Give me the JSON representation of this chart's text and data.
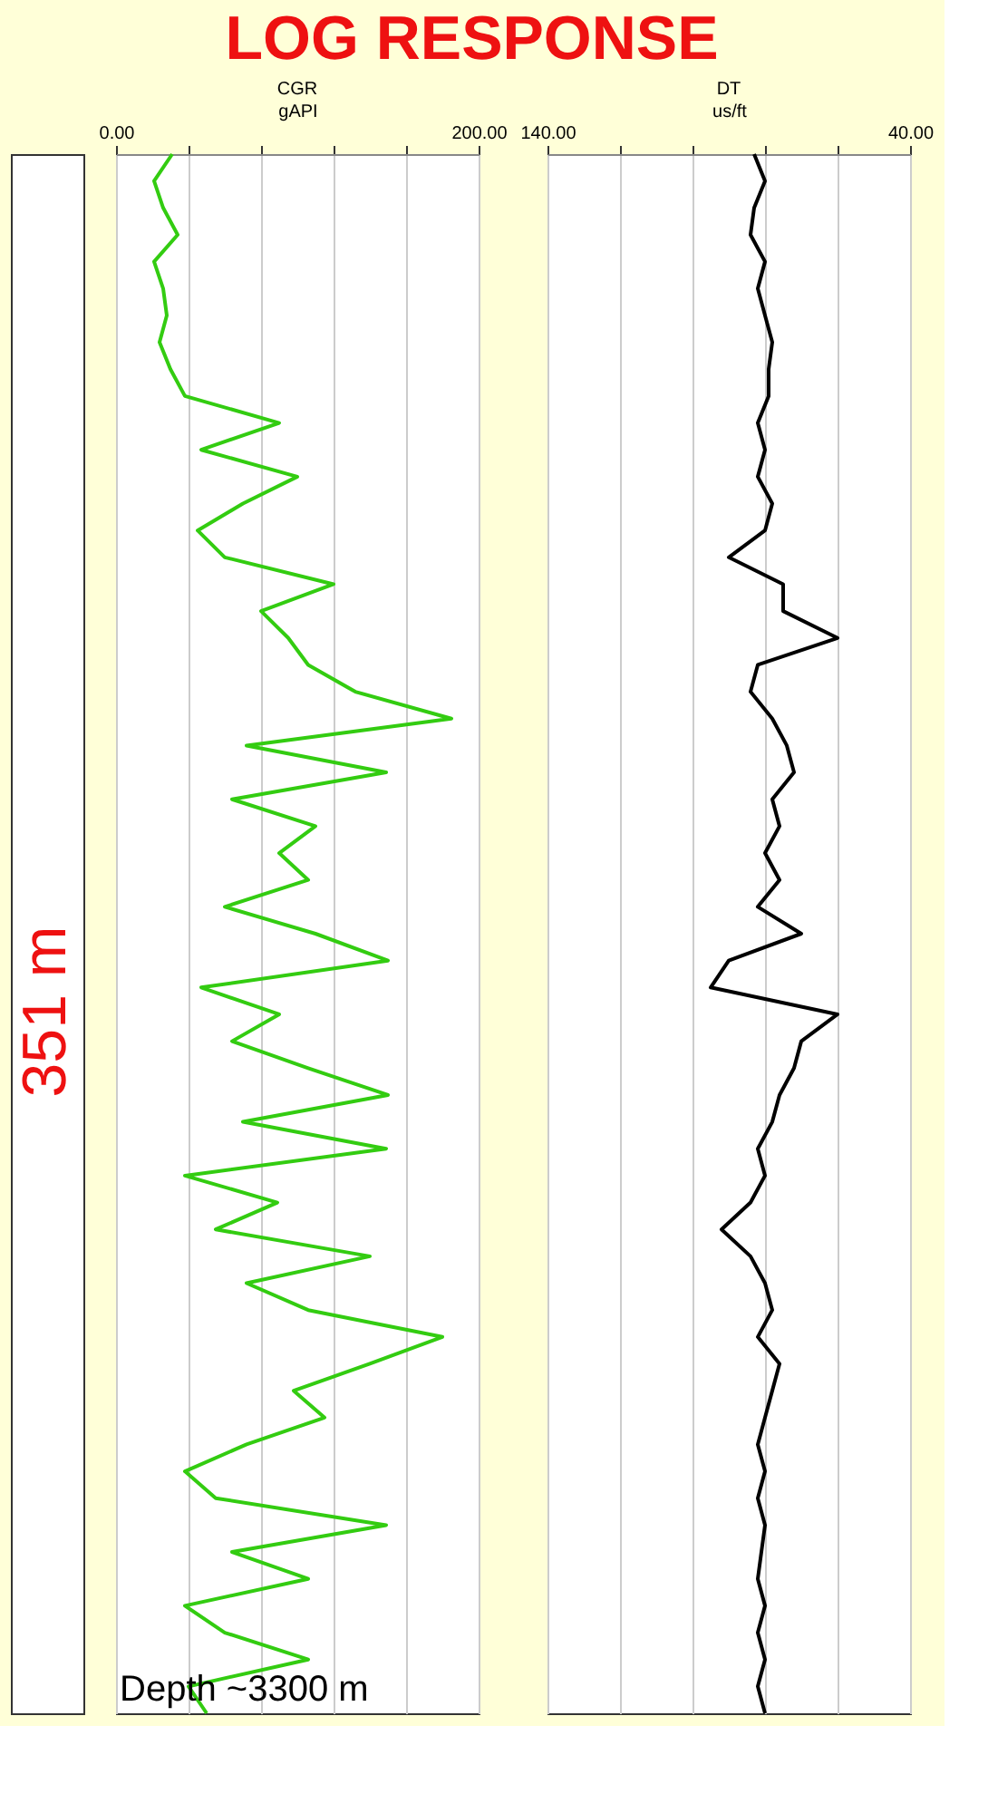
{
  "chart_data": [
    {
      "type": "line",
      "orientation": "horizontal",
      "title": "LOG RESPONSE",
      "subtitle": "CGR",
      "xlabel": "gAPI",
      "color": "#33cc11",
      "categories": [
        null,
        null,
        null,
        null,
        null,
        null,
        null,
        null,
        null,
        null,
        null,
        null,
        null,
        null,
        null,
        null,
        null,
        null,
        null,
        null,
        null,
        null,
        null,
        null,
        null,
        null,
        null,
        null,
        null,
        null,
        null,
        null,
        null,
        null,
        null,
        null,
        null,
        null,
        null,
        null,
        null,
        null,
        null,
        null,
        null,
        null,
        null,
        null,
        null,
        null,
        null,
        null,
        null,
        null,
        null,
        null,
        null,
        null,
        null
      ],
      "values": [
        31,
        21,
        26,
        34,
        21,
        26,
        28,
        24,
        30,
        38,
        90,
        47,
        100,
        70,
        45,
        60,
        120,
        80,
        95,
        106,
        132,
        185,
        72,
        149,
        64,
        110,
        90,
        106,
        60,
        110,
        150,
        47,
        90,
        64,
        106,
        150,
        70,
        149,
        38,
        89,
        55,
        140,
        72,
        106,
        180,
        140,
        98,
        115,
        72,
        38,
        55,
        149,
        64,
        106,
        38,
        60,
        106,
        40,
        50
      ],
      "xlim": [
        0,
        200
      ],
      "xticks": [
        {
          "value": 0,
          "label": "0.00"
        },
        {
          "value": 40,
          "label": null
        },
        {
          "value": 80,
          "label": null
        },
        {
          "value": 120,
          "label": null
        },
        {
          "value": 160,
          "label": null
        },
        {
          "value": 200,
          "label": "200.00"
        }
      ],
      "grid": "x",
      "annotations": [
        "351 m",
        "Depth ~3300 m"
      ]
    },
    {
      "type": "line",
      "orientation": "horizontal",
      "subtitle": "DT",
      "xlabel": "us/ft",
      "color": "#000000",
      "categories": [
        null,
        null,
        null,
        null,
        null,
        null,
        null,
        null,
        null,
        null,
        null,
        null,
        null,
        null,
        null,
        null,
        null,
        null,
        null,
        null,
        null,
        null,
        null,
        null,
        null,
        null,
        null,
        null,
        null,
        null,
        null,
        null,
        null,
        null,
        null,
        null,
        null,
        null,
        null,
        null,
        null,
        null,
        null,
        null,
        null,
        null,
        null,
        null,
        null,
        null,
        null,
        null,
        null,
        null,
        null,
        null,
        null,
        null,
        null
      ],
      "values": [
        83,
        80,
        83,
        84,
        80,
        82,
        80,
        78,
        79,
        79,
        82,
        80,
        82,
        78,
        80,
        90,
        75,
        75,
        60,
        82,
        84,
        78,
        74,
        72,
        78,
        76,
        80,
        76,
        82,
        70,
        90,
        95,
        60,
        70,
        72,
        76,
        78,
        82,
        80,
        84,
        92,
        84,
        80,
        78,
        82,
        76,
        78,
        80,
        82,
        80,
        82,
        80,
        81,
        82,
        80,
        82,
        80,
        82,
        80
      ],
      "xlim": [
        140,
        40
      ],
      "xticks": [
        {
          "value": 140,
          "label": "140.00"
        },
        {
          "value": 120,
          "label": null
        },
        {
          "value": 100,
          "label": null
        },
        {
          "value": 80,
          "label": null
        },
        {
          "value": 60,
          "label": null
        },
        {
          "value": 40,
          "label": "40.00"
        }
      ],
      "grid": "x"
    }
  ]
}
